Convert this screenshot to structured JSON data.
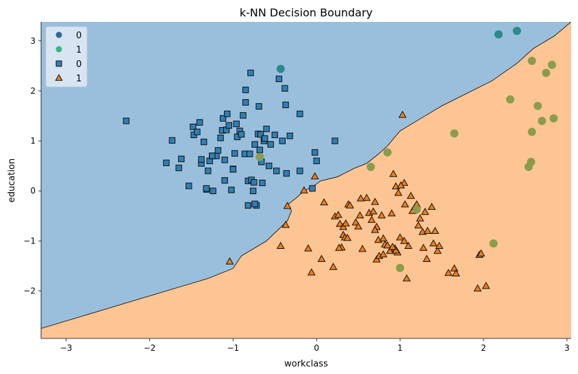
{
  "chart_data": {
    "type": "scatter",
    "title": "k-NN Decision Boundary",
    "xlabel": "workclass",
    "ylabel": "education",
    "xlim": [
      -3.3,
      3.05
    ],
    "ylim": [
      -2.95,
      3.38
    ],
    "xticks": [
      -3,
      -2,
      -1,
      0,
      1,
      2,
      3
    ],
    "yticks": [
      -2,
      -1,
      0,
      1,
      2,
      3
    ],
    "xtick_labels": [
      "−3",
      "−2",
      "−1",
      "0",
      "1",
      "2",
      "3"
    ],
    "ytick_labels": [
      "−2",
      "−1",
      "0",
      "1",
      "2",
      "3"
    ],
    "grid": false,
    "legend_position": "top-left",
    "colors": {
      "region_0": "#9abfdd",
      "region_1": "#fdc593",
      "circle_0": "#2a8a8c",
      "circle_1": "#8a9d4e",
      "square_0": "#2f7fb2",
      "triangle_1": "#ee7e1d",
      "legend_circle_0": "#31688e",
      "legend_circle_1": "#35b779"
    },
    "legend": [
      {
        "label": "0",
        "marker": "circle",
        "color": "#31688e"
      },
      {
        "label": "1",
        "marker": "circle",
        "color": "#35b779"
      },
      {
        "label": "0",
        "marker": "square",
        "color": "#2f7fb2"
      },
      {
        "label": "1",
        "marker": "triangle",
        "color": "#ee7e1d"
      }
    ],
    "boundary": [
      [
        -3.3,
        -2.75
      ],
      [
        -2.8,
        -2.5
      ],
      [
        -2.3,
        -2.25
      ],
      [
        -1.8,
        -2.0
      ],
      [
        -1.3,
        -1.75
      ],
      [
        -1.0,
        -1.55
      ],
      [
        -0.9,
        -1.3
      ],
      [
        -0.6,
        -1.0
      ],
      [
        -0.35,
        -0.6
      ],
      [
        -0.3,
        -0.4
      ],
      [
        -0.35,
        -0.28
      ],
      [
        -0.25,
        -0.15
      ],
      [
        -0.15,
        0.0
      ],
      [
        -0.05,
        0.08
      ],
      [
        0.05,
        0.2
      ],
      [
        0.25,
        0.28
      ],
      [
        0.45,
        0.45
      ],
      [
        0.6,
        0.55
      ],
      [
        0.75,
        0.75
      ],
      [
        0.85,
        0.9
      ],
      [
        1.0,
        1.2
      ],
      [
        1.2,
        1.4
      ],
      [
        1.5,
        1.7
      ],
      [
        1.8,
        1.95
      ],
      [
        2.1,
        2.2
      ],
      [
        2.4,
        2.55
      ],
      [
        2.6,
        2.85
      ],
      [
        2.85,
        3.1
      ],
      [
        3.05,
        3.38
      ]
    ],
    "series": [
      {
        "name": "0",
        "marker": "circle",
        "x": [
          -0.43,
          2.18,
          2.4
        ],
        "y": [
          2.44,
          3.13,
          3.2
        ]
      },
      {
        "name": "1",
        "marker": "circle",
        "x": [
          2.58,
          2.82,
          2.75,
          2.32,
          2.65,
          2.84,
          2.7,
          2.58,
          1.65,
          0.85,
          0.65,
          2.57,
          2.54,
          1.2,
          2.12,
          1.0,
          -0.68
        ],
        "y": [
          2.6,
          2.52,
          2.36,
          1.83,
          1.7,
          1.45,
          1.4,
          1.18,
          1.15,
          0.77,
          0.48,
          0.58,
          0.48,
          -0.37,
          -1.05,
          -1.54,
          0.68
        ]
      },
      {
        "name": "0",
        "marker": "square",
        "x": [
          -2.28,
          -1.73,
          -1.8,
          -1.65,
          -1.62,
          -1.53,
          -1.48,
          -1.47,
          -1.43,
          -1.4,
          -1.38,
          -1.35,
          -1.32,
          -1.3,
          -1.28,
          -1.25,
          -1.24,
          -1.2,
          -1.18,
          -1.15,
          -1.13,
          -1.12,
          -1.1,
          -1.08,
          -1.07,
          -1.05,
          -1.02,
          -1.0,
          -0.98,
          -0.96,
          -0.95,
          -0.92,
          -0.9,
          -0.88,
          -0.86,
          -0.85,
          -0.82,
          -0.8,
          -0.79,
          -0.78,
          -0.76,
          -0.74,
          -0.72,
          -0.7,
          -0.69,
          -0.68,
          -0.67,
          -0.66,
          -0.65,
          -0.63,
          -0.62,
          -0.6,
          -0.57,
          -0.55,
          -0.5,
          -0.48,
          -0.45,
          -0.41,
          -0.38,
          -0.37,
          -0.36,
          -0.32,
          -0.2,
          -0.2,
          -0.05,
          -0.02,
          0.0,
          0.22,
          -0.82,
          -0.74,
          -1.0,
          -1.1,
          -1.25,
          -1.32,
          -1.38,
          -0.85,
          -0.75
        ],
        "y": [
          1.4,
          1.01,
          0.56,
          0.46,
          0.64,
          0.1,
          1.28,
          1.12,
          1.18,
          1.37,
          0.55,
          0.98,
          0.03,
          0.4,
          0.6,
          0.7,
          0.0,
          0.7,
          0.81,
          1.06,
          1.21,
          1.45,
          0.62,
          1.22,
          1.54,
          1.31,
          0.02,
          0.44,
          0.75,
          1.34,
          1.08,
          1.2,
          1.13,
          1.51,
          0.74,
          1.77,
          0.2,
          0.74,
          2.36,
          0.22,
          0.0,
          0.93,
          -0.29,
          1.14,
          1.69,
          0.82,
          1.13,
          0.58,
          0.16,
          1.0,
          1.05,
          1.24,
          0.5,
          0.93,
          1.12,
          0.4,
          2.24,
          1.0,
          2.05,
          1.72,
          0.35,
          1.1,
          1.54,
          0.4,
          0.05,
          0.77,
          0.6,
          1.0,
          -0.29,
          -0.26,
          0.43,
          0.21,
          0.7,
          0.05,
          0.63,
          2.02,
          0.17
        ]
      },
      {
        "name": "1",
        "marker": "triangle",
        "x": [
          -1.04,
          -0.43,
          -0.37,
          -0.35,
          -0.15,
          -0.1,
          -0.06,
          0.06,
          -0.02,
          0.09,
          0.2,
          0.22,
          0.26,
          0.28,
          0.3,
          0.32,
          0.32,
          0.34,
          0.35,
          0.38,
          0.4,
          0.47,
          0.5,
          0.52,
          0.6,
          0.63,
          0.66,
          0.68,
          0.7,
          0.72,
          0.72,
          0.74,
          0.75,
          0.78,
          0.8,
          0.82,
          0.85,
          0.88,
          0.9,
          0.92,
          0.94,
          0.95,
          0.97,
          0.98,
          1.0,
          1.03,
          1.05,
          1.08,
          1.1,
          1.13,
          1.15,
          1.18,
          1.22,
          1.24,
          1.27,
          1.28,
          1.3,
          1.32,
          1.38,
          1.4,
          1.42,
          1.45,
          1.47,
          1.58,
          1.65,
          1.67,
          1.93,
          1.95,
          1.97,
          2.03,
          0.55,
          0.7,
          1.06,
          1.05,
          0.95,
          0.53,
          0.37,
          1.2,
          1.33,
          0.8,
          0.91,
          1.01,
          0.27
        ],
        "y": [
          -1.41,
          -1.1,
          -0.68,
          -0.3,
          0.01,
          -1.15,
          -1.63,
          -1.36,
          0.29,
          -0.23,
          -1.52,
          -0.51,
          -0.48,
          -0.66,
          -1.13,
          -0.88,
          -0.72,
          -0.93,
          -0.65,
          -0.27,
          -0.29,
          -0.63,
          -0.71,
          -0.49,
          -0.14,
          -0.44,
          -0.58,
          -0.41,
          -0.22,
          -1.37,
          -0.72,
          -0.98,
          -1.3,
          -0.49,
          -1.27,
          -1.07,
          -1.09,
          -1.2,
          -0.45,
          0.34,
          -1.15,
          0.09,
          -1.23,
          -0.04,
          -0.93,
          1.52,
          -1.0,
          -1.75,
          -1.1,
          -0.1,
          -0.4,
          -0.32,
          -0.69,
          -0.55,
          -0.82,
          -1.14,
          -0.42,
          -1.36,
          -0.32,
          -1.05,
          -0.8,
          -1.2,
          -1.1,
          -1.64,
          -1.55,
          -1.65,
          -1.95,
          -1.28,
          -1.25,
          -1.9,
          -1.16,
          -0.78,
          -0.27,
          0.16,
          -1.19,
          -0.15,
          -0.94,
          -0.27,
          -0.8,
          -0.95,
          -1.12,
          0.11,
          -1.14
        ]
      }
    ]
  }
}
